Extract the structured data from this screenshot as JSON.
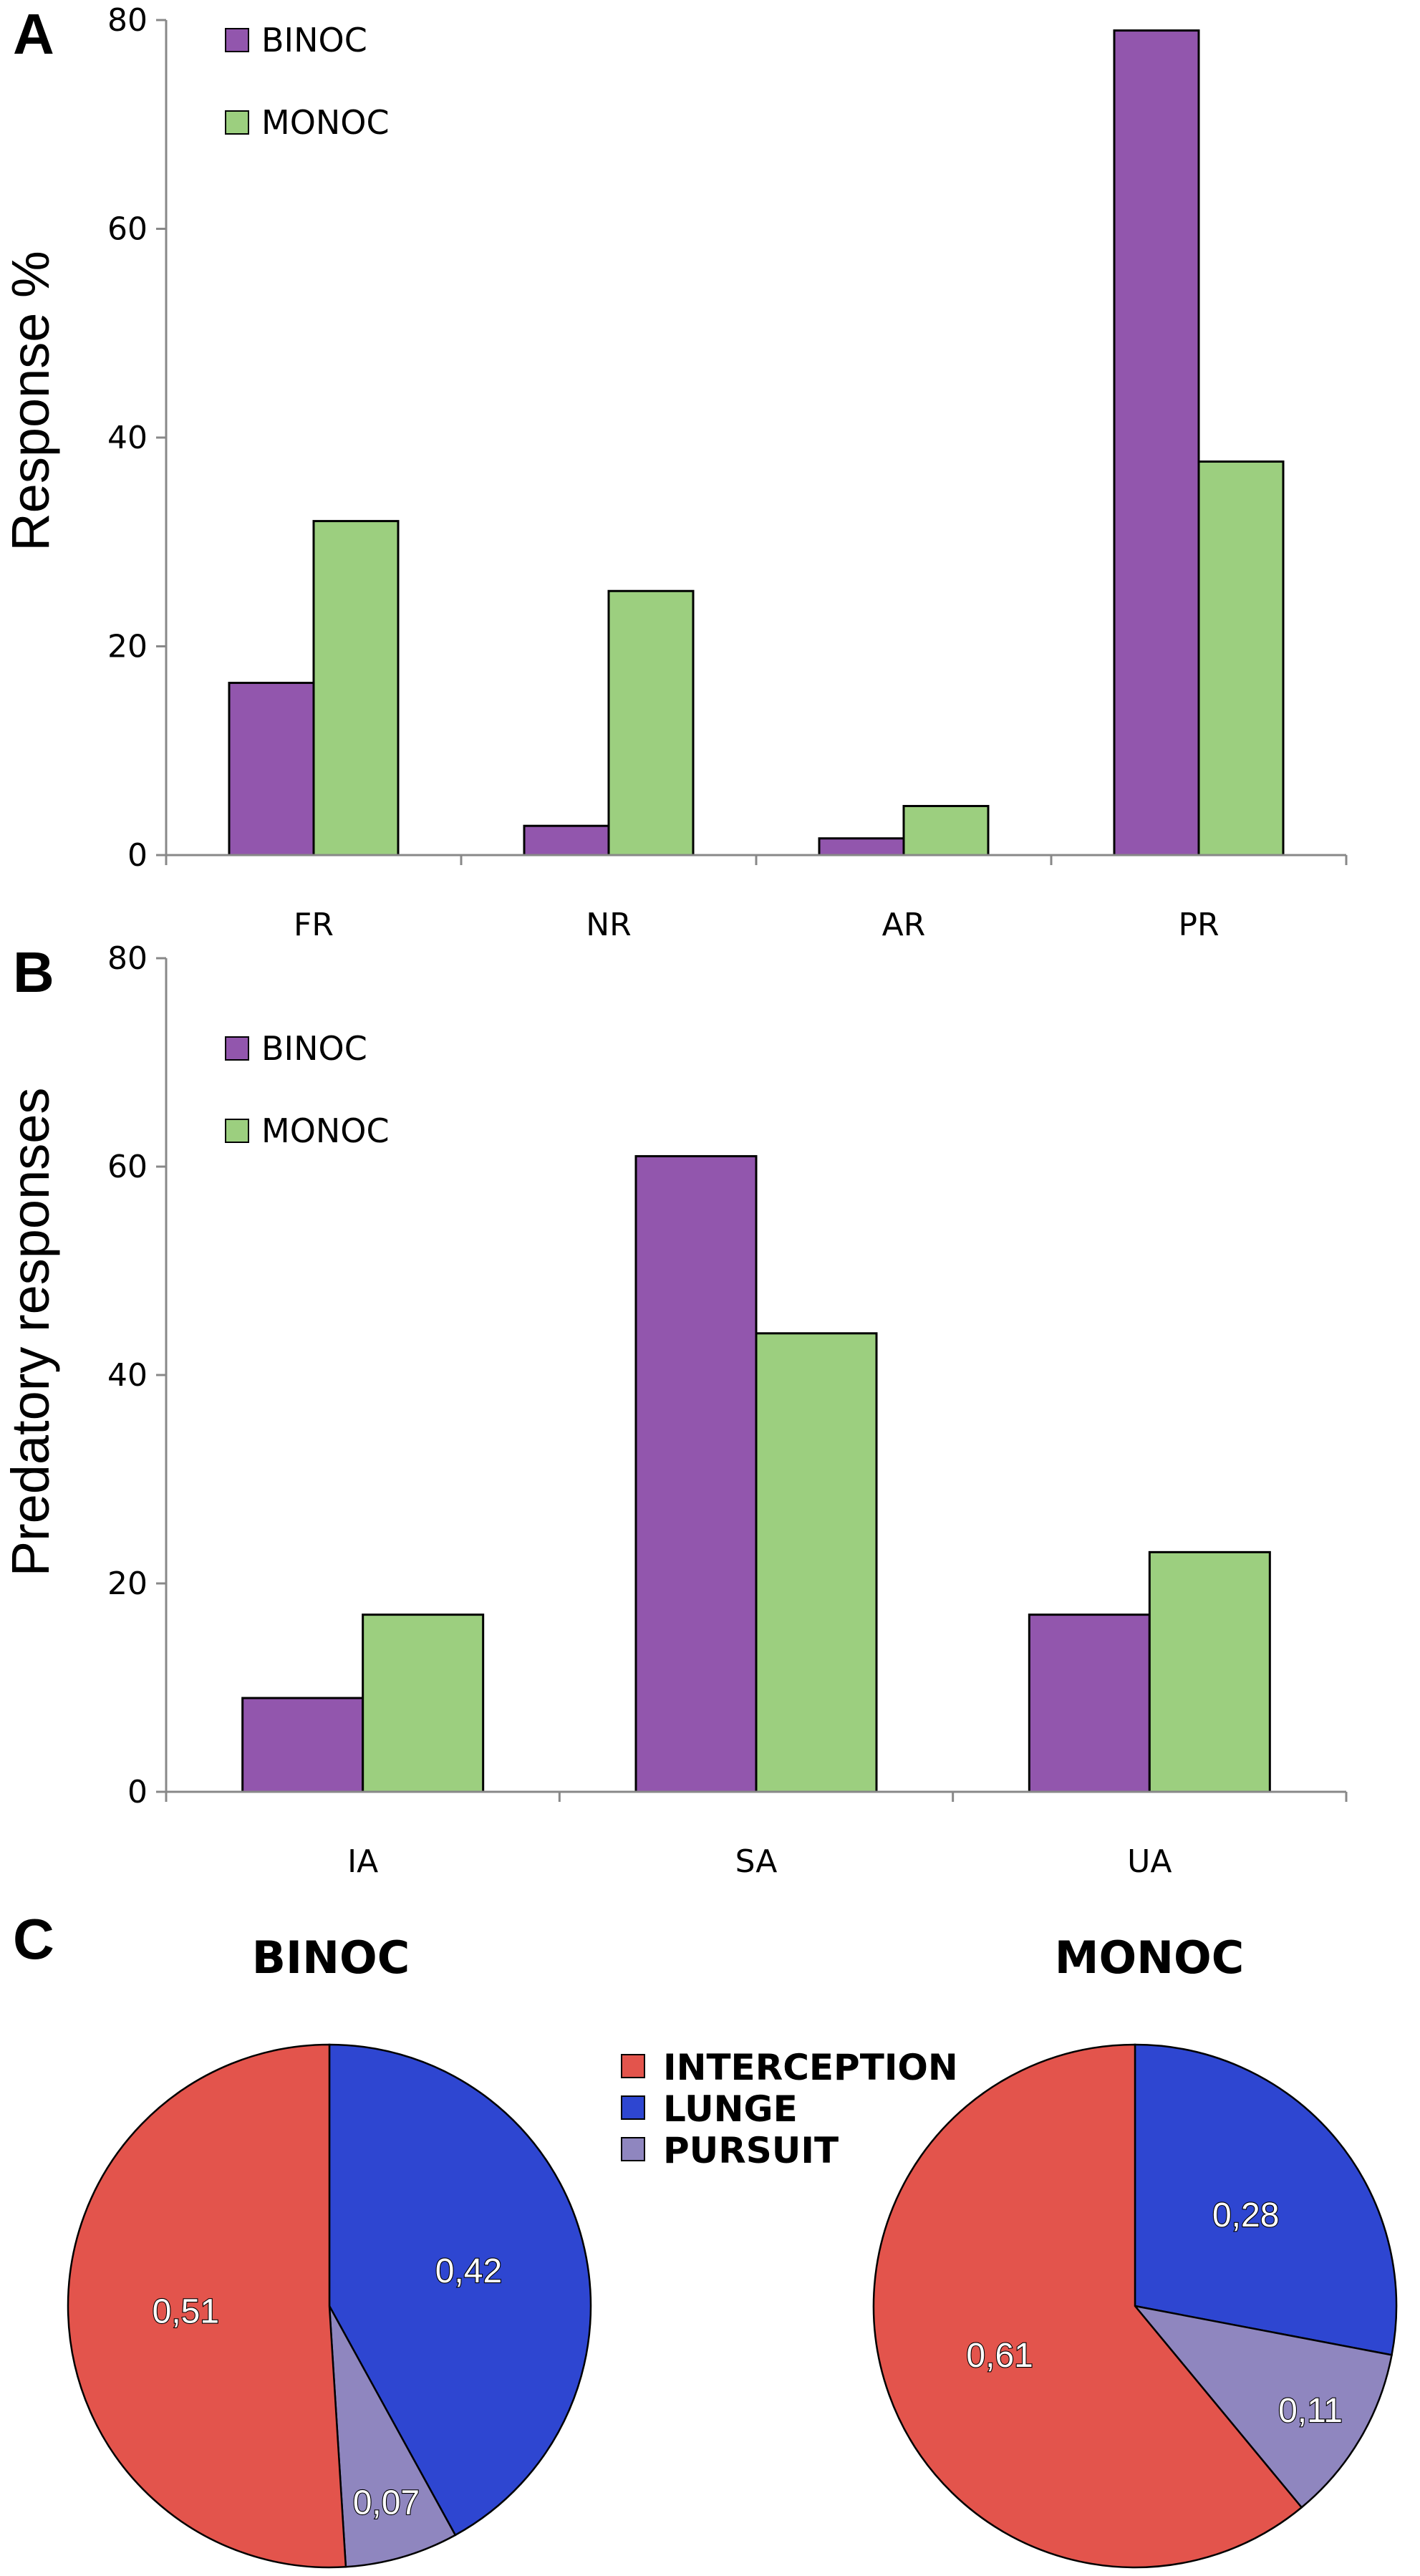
{
  "colors": {
    "binoc": "#9256ad",
    "monoc": "#9ccf7f",
    "interception": "#e3544c",
    "lunge": "#2e46d1",
    "pursuit": "#8f86bf",
    "axis": "#888888",
    "outline": "#000000"
  },
  "panels": {
    "a": "A",
    "b": "B",
    "c": "C"
  },
  "chart_data": [
    {
      "id": "A",
      "type": "bar",
      "title": "",
      "xlabel": "",
      "ylabel": "Response %",
      "ylim": [
        0,
        80
      ],
      "yticks": [
        0,
        20,
        40,
        60,
        80
      ],
      "categories": [
        "FR",
        "NR",
        "AR",
        "PR"
      ],
      "series": [
        {
          "name": "BINOC",
          "values": [
            16.5,
            2.8,
            1.6,
            79
          ]
        },
        {
          "name": "MONOC",
          "values": [
            32,
            25.3,
            4.7,
            37.7
          ]
        }
      ],
      "legend": "top-left",
      "grid": false
    },
    {
      "id": "B",
      "type": "bar",
      "title": "",
      "xlabel": "",
      "ylabel": "Predatory responses",
      "ylim": [
        0,
        80
      ],
      "yticks": [
        0,
        20,
        40,
        60,
        80
      ],
      "categories": [
        "IA",
        "SA",
        "UA"
      ],
      "series": [
        {
          "name": "BINOC",
          "values": [
            9,
            61,
            17
          ]
        },
        {
          "name": "MONOC",
          "values": [
            17,
            44,
            23
          ]
        }
      ],
      "legend": "top-left",
      "grid": false
    },
    {
      "id": "C1",
      "type": "pie",
      "title": "BINOC",
      "slices": [
        {
          "name": "INTERCEPTION",
          "value": 0.51,
          "label": "0,51"
        },
        {
          "name": "LUNGE",
          "value": 0.42,
          "label": "0,42"
        },
        {
          "name": "PURSUIT",
          "value": 0.07,
          "label": "0,07"
        }
      ]
    },
    {
      "id": "C2",
      "type": "pie",
      "title": "MONOC",
      "slices": [
        {
          "name": "INTERCEPTION",
          "value": 0.61,
          "label": "0,61"
        },
        {
          "name": "LUNGE",
          "value": 0.28,
          "label": "0,28"
        },
        {
          "name": "PURSUIT",
          "value": 0.11,
          "label": "0,11"
        }
      ]
    }
  ],
  "pie_legend": [
    "INTERCEPTION",
    "LUNGE",
    "PURSUIT"
  ]
}
